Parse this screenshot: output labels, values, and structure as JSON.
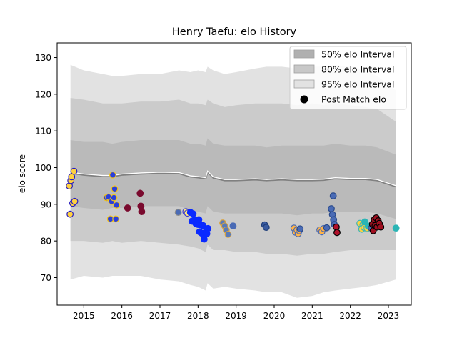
{
  "chart_data": {
    "type": "scatter",
    "title": "Henry Taefu: elo History",
    "xlabel": "",
    "ylabel": "elo score",
    "xlim": [
      2014.3,
      2023.6
    ],
    "ylim": [
      62.5,
      134
    ],
    "x_ticks": [
      {
        "value": 2015,
        "label": "2015"
      },
      {
        "value": 2016,
        "label": "2016"
      },
      {
        "value": 2017,
        "label": "2017"
      },
      {
        "value": 2018,
        "label": "2018"
      },
      {
        "value": 2019,
        "label": "2019"
      },
      {
        "value": 2020,
        "label": "2020"
      },
      {
        "value": 2021,
        "label": "2021"
      },
      {
        "value": 2022,
        "label": "2022"
      },
      {
        "value": 2023,
        "label": "2023"
      }
    ],
    "y_ticks": [
      {
        "value": 70,
        "label": "70"
      },
      {
        "value": 80,
        "label": "80"
      },
      {
        "value": 90,
        "label": "90"
      },
      {
        "value": 100,
        "label": "100"
      },
      {
        "value": 110,
        "label": "110"
      },
      {
        "value": 120,
        "label": "120"
      },
      {
        "value": 130,
        "label": "130"
      }
    ],
    "grid": false,
    "legend_placement": "top-right",
    "legend": [
      {
        "label": "50% elo Interval",
        "kind": "band",
        "color": "#b0b0b0"
      },
      {
        "label": "80% elo Interval",
        "kind": "band",
        "color": "#c8c8c8"
      },
      {
        "label": "95% elo Interval",
        "kind": "band",
        "color": "#e2e2e2"
      },
      {
        "label": "Post Match elo",
        "kind": "marker",
        "color": "#000000"
      }
    ],
    "band_colors": {
      "p95": "#e2e2e2",
      "p80": "#cbcbcb",
      "p50": "#bababa"
    },
    "mean_line_color": "#808080",
    "mean_highlight_color": "#ffffff",
    "bands": [
      {
        "x": 2014.65,
        "mean": 98.5,
        "p50": [
          89.5,
          107.5
        ],
        "p80": [
          80.0,
          119.0
        ],
        "p95": [
          69.5,
          128.0
        ]
      },
      {
        "x": 2015.0,
        "mean": 98.0,
        "p50": [
          89.0,
          107.0
        ],
        "p80": [
          80.0,
          118.5
        ],
        "p95": [
          70.5,
          126.5
        ]
      },
      {
        "x": 2015.5,
        "mean": 97.6,
        "p50": [
          88.5,
          107.0
        ],
        "p80": [
          79.5,
          117.5
        ],
        "p95": [
          70.0,
          125.5
        ]
      },
      {
        "x": 2015.75,
        "mean": 97.6,
        "p50": [
          89.0,
          106.5
        ],
        "p80": [
          80.0,
          117.5
        ],
        "p95": [
          70.5,
          125.0
        ]
      },
      {
        "x": 2016.0,
        "mean": 98.0,
        "p50": [
          89.0,
          107.0
        ],
        "p80": [
          79.5,
          117.5
        ],
        "p95": [
          70.5,
          125.0
        ]
      },
      {
        "x": 2016.5,
        "mean": 98.3,
        "p50": [
          89.5,
          107.5
        ],
        "p80": [
          80.0,
          118.0
        ],
        "p95": [
          70.5,
          125.5
        ]
      },
      {
        "x": 2017.0,
        "mean": 98.5,
        "p50": [
          89.5,
          107.5
        ],
        "p80": [
          79.5,
          118.0
        ],
        "p95": [
          69.5,
          125.5
        ]
      },
      {
        "x": 2017.5,
        "mean": 98.4,
        "p50": [
          89.5,
          107.5
        ],
        "p80": [
          79.0,
          118.5
        ],
        "p95": [
          69.0,
          126.5
        ]
      },
      {
        "x": 2017.8,
        "mean": 97.5,
        "p50": [
          88.5,
          106.5
        ],
        "p80": [
          78.5,
          117.5
        ],
        "p95": [
          68.0,
          126.0
        ]
      },
      {
        "x": 2018.0,
        "mean": 97.3,
        "p50": [
          88.0,
          106.5
        ],
        "p80": [
          78.0,
          117.5
        ],
        "p95": [
          67.5,
          126.5
        ]
      },
      {
        "x": 2018.2,
        "mean": 97.0,
        "p50": [
          87.5,
          106.0
        ],
        "p80": [
          77.0,
          117.0
        ],
        "p95": [
          66.5,
          126.0
        ]
      },
      {
        "x": 2018.25,
        "mean": 98.8,
        "p50": [
          89.5,
          108.0
        ],
        "p80": [
          79.0,
          118.5
        ],
        "p95": [
          68.5,
          127.5
        ]
      },
      {
        "x": 2018.4,
        "mean": 97.2,
        "p50": [
          88.0,
          106.5
        ],
        "p80": [
          77.5,
          117.5
        ],
        "p95": [
          67.0,
          126.5
        ]
      },
      {
        "x": 2018.7,
        "mean": 96.5,
        "p50": [
          87.5,
          106.0
        ],
        "p80": [
          77.5,
          116.5
        ],
        "p95": [
          67.5,
          125.5
        ]
      },
      {
        "x": 2019.0,
        "mean": 96.5,
        "p50": [
          87.5,
          106.0
        ],
        "p80": [
          77.0,
          117.0
        ],
        "p95": [
          67.0,
          126.0
        ]
      },
      {
        "x": 2019.5,
        "mean": 96.7,
        "p50": [
          87.5,
          106.0
        ],
        "p80": [
          77.0,
          117.5
        ],
        "p95": [
          66.5,
          127.0
        ]
      },
      {
        "x": 2019.8,
        "mean": 96.5,
        "p50": [
          87.5,
          105.5
        ],
        "p80": [
          76.5,
          117.5
        ],
        "p95": [
          66.0,
          127.5
        ]
      },
      {
        "x": 2020.2,
        "mean": 96.7,
        "p50": [
          87.5,
          106.0
        ],
        "p80": [
          76.5,
          117.5
        ],
        "p95": [
          66.0,
          127.5
        ]
      },
      {
        "x": 2020.6,
        "mean": 96.5,
        "p50": [
          87.0,
          106.0
        ],
        "p80": [
          76.0,
          117.0
        ],
        "p95": [
          64.5,
          127.0
        ]
      },
      {
        "x": 2021.0,
        "mean": 96.5,
        "p50": [
          87.5,
          106.0
        ],
        "p80": [
          76.5,
          117.5
        ],
        "p95": [
          65.0,
          127.5
        ]
      },
      {
        "x": 2021.3,
        "mean": 96.6,
        "p50": [
          87.5,
          106.0
        ],
        "p80": [
          76.5,
          117.0
        ],
        "p95": [
          66.0,
          127.5
        ]
      },
      {
        "x": 2021.6,
        "mean": 97.0,
        "p50": [
          88.0,
          106.5
        ],
        "p80": [
          77.0,
          117.5
        ],
        "p95": [
          66.5,
          128.0
        ]
      },
      {
        "x": 2022.0,
        "mean": 96.8,
        "p50": [
          88.0,
          106.0
        ],
        "p80": [
          77.5,
          117.0
        ],
        "p95": [
          67.0,
          127.5
        ]
      },
      {
        "x": 2022.4,
        "mean": 96.8,
        "p50": [
          88.0,
          106.0
        ],
        "p80": [
          77.5,
          116.5
        ],
        "p95": [
          67.5,
          126.5
        ]
      },
      {
        "x": 2022.7,
        "mean": 96.5,
        "p50": [
          87.5,
          105.5
        ],
        "p80": [
          77.5,
          116.0
        ],
        "p95": [
          68.0,
          125.0
        ]
      },
      {
        "x": 2023.2,
        "mean": 94.8,
        "p50": [
          86.0,
          103.5
        ],
        "p80": [
          77.5,
          112.5
        ],
        "p95": [
          69.5,
          121.0
        ]
      }
    ],
    "series": [
      {
        "fill": "#ffd23f",
        "stroke": "#2a1fbf",
        "points": [
          [
            2014.62,
            95.0
          ],
          [
            2014.64,
            87.3
          ],
          [
            2014.66,
            96.5
          ],
          [
            2014.68,
            97.5
          ],
          [
            2014.71,
            90.3
          ],
          [
            2014.74,
            99.0
          ],
          [
            2014.76,
            90.8
          ]
        ]
      },
      {
        "fill": "#2a3fdb",
        "stroke": "#f5c518",
        "points": [
          [
            2015.6,
            91.8
          ],
          [
            2015.65,
            92.0
          ],
          [
            2015.7,
            86.0
          ],
          [
            2015.73,
            90.8
          ],
          [
            2015.76,
            98.0
          ],
          [
            2015.79,
            91.8
          ],
          [
            2015.81,
            94.2
          ],
          [
            2015.84,
            86.0
          ],
          [
            2015.86,
            89.8
          ]
        ]
      },
      {
        "fill": "#7a0a2e",
        "stroke": "#7a0a2e",
        "points": [
          [
            2016.15,
            89.0
          ],
          [
            2016.48,
            93.0
          ],
          [
            2016.5,
            89.5
          ],
          [
            2016.52,
            88.0
          ]
        ]
      },
      {
        "fill": "#4a6bb5",
        "stroke": "#8a8a8a",
        "points": [
          [
            2017.48,
            87.8
          ]
        ]
      },
      {
        "fill": "#ffeb7a",
        "stroke": "#3a3ad0",
        "points": [
          [
            2017.68,
            88.0
          ],
          [
            2017.72,
            87.6
          ]
        ]
      },
      {
        "fill": "#0a2aff",
        "stroke": "#0a2aff",
        "points": [
          [
            2017.8,
            87.8
          ],
          [
            2017.84,
            85.4
          ],
          [
            2017.87,
            87.4
          ],
          [
            2017.9,
            85.7
          ],
          [
            2017.94,
            84.8
          ],
          [
            2017.97,
            84.6
          ],
          [
            2018.0,
            84.5
          ],
          [
            2018.02,
            85.8
          ],
          [
            2018.04,
            82.5
          ],
          [
            2018.07,
            84.4
          ],
          [
            2018.1,
            82.1
          ],
          [
            2018.13,
            84.2
          ],
          [
            2018.16,
            80.5
          ],
          [
            2018.2,
            82.4
          ],
          [
            2018.23,
            82.0
          ],
          [
            2018.26,
            83.4
          ]
        ]
      },
      {
        "fill": "#5a7ab8",
        "stroke": "#d9a441",
        "points": [
          [
            2018.65,
            84.9
          ],
          [
            2018.7,
            84.1
          ],
          [
            2018.74,
            83.0
          ],
          [
            2018.79,
            81.8
          ]
        ]
      },
      {
        "fill": "#4a6bb5",
        "stroke": "#4a6bb5",
        "points": [
          [
            2018.92,
            84.1
          ]
        ]
      },
      {
        "fill": "#3a5ba0",
        "stroke": "#1f3f7a",
        "points": [
          [
            2019.75,
            84.4
          ],
          [
            2019.79,
            83.7
          ]
        ]
      },
      {
        "fill": "#ffb347",
        "stroke": "#4a6bb5",
        "points": [
          [
            2020.52,
            83.5
          ],
          [
            2020.56,
            82.4
          ],
          [
            2020.6,
            83.0
          ],
          [
            2020.63,
            82.0
          ],
          [
            2020.66,
            82.8
          ],
          [
            2021.2,
            83.0
          ],
          [
            2021.25,
            82.5
          ],
          [
            2021.3,
            83.4
          ]
        ]
      },
      {
        "fill": "#4a6bb5",
        "stroke": "#2a4a8a",
        "points": [
          [
            2020.68,
            83.3
          ],
          [
            2021.38,
            83.6
          ],
          [
            2021.5,
            88.8
          ],
          [
            2021.53,
            87.2
          ],
          [
            2021.56,
            85.8
          ],
          [
            2021.58,
            84.5
          ],
          [
            2021.55,
            92.3
          ]
        ]
      },
      {
        "fill": "#b0102a",
        "stroke": "#000000",
        "points": [
          [
            2021.63,
            83.8
          ],
          [
            2021.65,
            82.3
          ]
        ]
      },
      {
        "fill": "#ffd23f",
        "stroke": "#3fb5b5",
        "points": [
          [
            2022.25,
            84.8
          ],
          [
            2022.3,
            83.2
          ],
          [
            2022.33,
            84.4
          ],
          [
            2022.36,
            83.7
          ],
          [
            2022.4,
            84.6
          ],
          [
            2022.44,
            83.4
          ]
        ]
      },
      {
        "fill": "#2ab5b5",
        "stroke": "#2ab5b5",
        "points": [
          [
            2022.38,
            85.2
          ],
          [
            2022.47,
            84.0
          ],
          [
            2023.2,
            83.5
          ]
        ]
      },
      {
        "fill": "#4a6bb5",
        "stroke": "#3a4a7a",
        "points": [
          [
            2022.55,
            83.5
          ]
        ]
      },
      {
        "fill": "#a01020",
        "stroke": "#000000",
        "points": [
          [
            2022.58,
            84.6
          ],
          [
            2022.6,
            82.8
          ],
          [
            2022.63,
            85.8
          ],
          [
            2022.65,
            84.2
          ],
          [
            2022.68,
            86.3
          ],
          [
            2022.7,
            83.8
          ],
          [
            2022.73,
            85.5
          ],
          [
            2022.76,
            84.8
          ],
          [
            2022.8,
            83.8
          ]
        ]
      }
    ]
  }
}
